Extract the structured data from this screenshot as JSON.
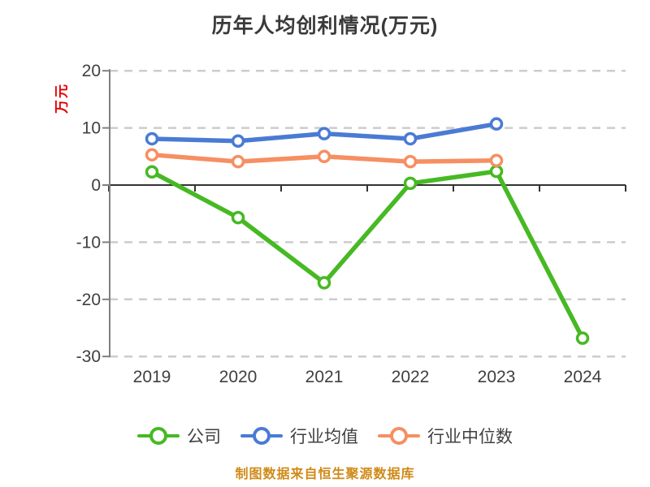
{
  "chart_data": {
    "type": "line",
    "title": "历年人均创利情况(万元)",
    "ylabel": "万元",
    "xlabel": "",
    "categories": [
      "2019",
      "2020",
      "2021",
      "2022",
      "2023",
      "2024"
    ],
    "series": [
      {
        "name": "公司",
        "color": "#46b923",
        "values": [
          2.3,
          -5.7,
          -17.1,
          0.3,
          2.4,
          -26.8
        ]
      },
      {
        "name": "行业均值",
        "color": "#4a7bd4",
        "values": [
          8.1,
          7.7,
          9.0,
          8.1,
          10.7,
          null
        ]
      },
      {
        "name": "行业中位数",
        "color": "#f68f62",
        "values": [
          5.3,
          4.1,
          5.0,
          4.1,
          4.3,
          null
        ]
      }
    ],
    "ylim": [
      -30,
      20
    ],
    "yticks": [
      20,
      10,
      0,
      -10,
      -20,
      -30
    ],
    "grid": "dashed-horizontal",
    "legend_position": "bottom",
    "marker": "hollow-circle"
  },
  "colors": {
    "title_text": "#3a3a3a",
    "axis_text": "#3f3f3f",
    "ylabel_text": "#e60000",
    "grid_line": "#cccccc",
    "zero_axis_line": "#333333",
    "axis_spine": "#808080",
    "footer_text": "#d08a18"
  },
  "footer": "制图数据来自恒生聚源数据库"
}
